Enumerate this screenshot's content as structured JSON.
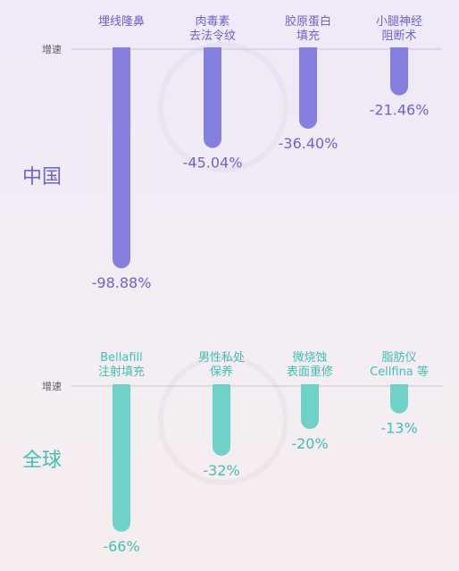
{
  "chart_data": [
    {
      "type": "bar",
      "title": "",
      "region_label": "中国",
      "baseline_label": "增速",
      "categories": [
        [
          "埋线隆鼻"
        ],
        [
          "肉毒素",
          "去法令纹"
        ],
        [
          "胶原蛋白",
          "填充"
        ],
        [
          "小腿神经",
          "阻断术"
        ]
      ],
      "values": [
        -98.88,
        -45.04,
        -36.4,
        -21.46
      ],
      "value_labels": [
        "-98.88%",
        "-45.04%",
        "-36.40%",
        "-21.46%"
      ],
      "ylim": [
        -100,
        0
      ],
      "bar_color": "#8580e0",
      "label_color": "#6c63d6",
      "region_color": "#6c63d6"
    },
    {
      "type": "bar",
      "title": "",
      "region_label": "全球",
      "baseline_label": "增速",
      "categories": [
        [
          "Bellafill",
          "注射填充"
        ],
        [
          "男性私处",
          "保养"
        ],
        [
          "微烧蚀",
          "表面重修"
        ],
        [
          "脂肪仪",
          "Cellfina 等"
        ]
      ],
      "values": [
        -66,
        -32,
        -20,
        -13
      ],
      "value_labels": [
        "-66%",
        "-32%",
        "-20%",
        "-13%"
      ],
      "ylim": [
        -100,
        0
      ],
      "bar_color": "#6fd2c8",
      "label_color": "#3fc1b4",
      "region_color": "#3fc1b4"
    }
  ],
  "colors": {
    "text_dark": "#5a5a66",
    "baseline": "#c9c3d8"
  }
}
